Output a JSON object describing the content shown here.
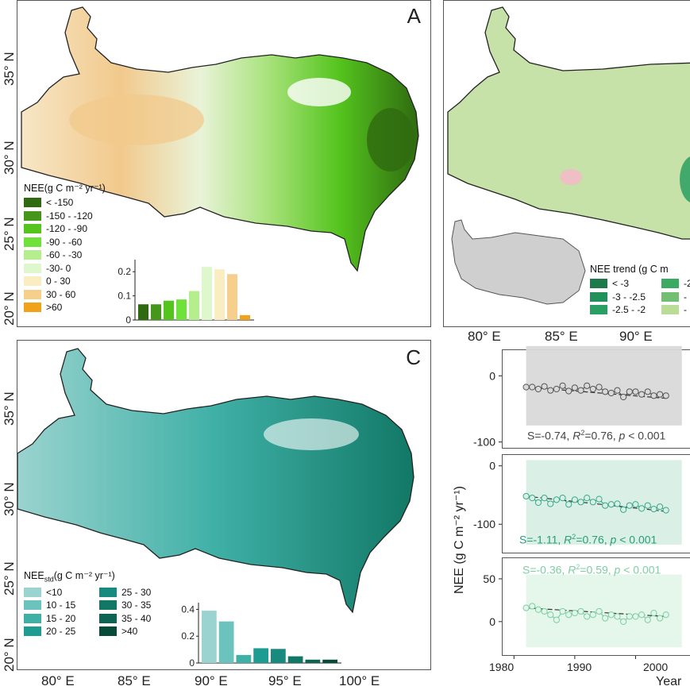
{
  "panels": {
    "a": {
      "letter": "A",
      "legend_title": "NEE(g C m⁻² yr⁻¹)",
      "legend_items": [
        {
          "label": "< -150",
          "color": "#2f6a10"
        },
        {
          "label": "-150 - -120",
          "color": "#46961b"
        },
        {
          "label": "-120 - -90",
          "color": "#55c41e"
        },
        {
          "label": "-90 - -60",
          "color": "#6fe23a"
        },
        {
          "label": "-60 - -30",
          "color": "#b5ee8c"
        },
        {
          "label": "-30- 0",
          "color": "#def7cc"
        },
        {
          "label": "0 - 30",
          "color": "#fbedc2"
        },
        {
          "label": "30 - 60",
          "color": "#f6cf8c"
        },
        {
          "label": ">60",
          "color": "#f0a31a"
        }
      ]
    },
    "b": {
      "legend_title": "NEE trend (g C m",
      "legend_items": [
        {
          "label": "< -3",
          "color": "#1e7a4a"
        },
        {
          "label": "-3 - -2.5",
          "color": "#22905a"
        },
        {
          "label": "-2.5 - -2",
          "color": "#2a9f63"
        },
        {
          "label": "-2",
          "color": "#3daa62"
        },
        {
          "label": "-",
          "color": "#72bf72"
        },
        {
          "label": "-",
          "color": "#b9dc97"
        }
      ]
    },
    "c": {
      "letter": "C",
      "legend_title_main": "NEE",
      "legend_title_sub": "std",
      "legend_title_rest": "(g C m⁻² yr⁻¹)",
      "legend_items": [
        {
          "label": "<10",
          "color": "#9ad3cf"
        },
        {
          "label": "10 - 15",
          "color": "#6cc2bd"
        },
        {
          "label": "15 - 20",
          "color": "#3fb0a6"
        },
        {
          "label": "20 - 25",
          "color": "#1e9c92"
        },
        {
          "label": "25 - 30",
          "color": "#188a7e"
        },
        {
          "label": "30 - 35",
          "color": "#127866"
        },
        {
          "label": "35 - 40",
          "color": "#0c6452"
        },
        {
          "label": ">40",
          "color": "#064a3a"
        }
      ]
    }
  },
  "lat_labels": [
    "35° N",
    "30° N",
    "25° N",
    "20° N"
  ],
  "lon_labels": [
    "80° E",
    "85° E",
    "90° E",
    "95° E",
    "100° E"
  ],
  "lon_labels_b": [
    "80° E",
    "85° E",
    "90° E"
  ],
  "ts": {
    "ylabel": "NEE (g C m⁻² yr⁻¹)",
    "xlabel": "Year",
    "x_ticks": [
      "1980",
      "1990",
      "2000"
    ],
    "stats": [
      {
        "S": "S=-0.74, ",
        "R": "R",
        "R_rest": "=0.76, ",
        "p": "p",
        "p_rest": " < 0.001"
      },
      {
        "S": "S=-1.11, ",
        "R": "R",
        "R_rest": "=0.76, ",
        "p": "p",
        "p_rest": " < 0.001"
      },
      {
        "S": "S=-0.36, ",
        "R": "R",
        "R_rest": "=0.59, ",
        "p": "p",
        "p_rest": " < 0.001"
      }
    ]
  },
  "chart_data": [
    {
      "type": "bar",
      "panel": "A inset histogram",
      "categories": [
        "< -150",
        "-150 - -120",
        "-120 - -90",
        "-90 - -60",
        "-60 - -30",
        "-30- 0",
        "0 - 30",
        "30 - 60",
        ">60"
      ],
      "values": [
        0.065,
        0.065,
        0.08,
        0.085,
        0.12,
        0.22,
        0.21,
        0.19,
        0.02
      ],
      "colors": [
        "#2f6a10",
        "#46961b",
        "#55c41e",
        "#6fe23a",
        "#b5ee8c",
        "#def7cc",
        "#fbedc2",
        "#f6cf8c",
        "#f0a31a"
      ],
      "y_ticks": [
        "0",
        "0.1",
        "0.2"
      ],
      "ylim": [
        0,
        0.25
      ]
    },
    {
      "type": "bar",
      "panel": "C inset histogram",
      "categories": [
        "<10",
        "10 - 15",
        "15 - 20",
        "20 - 25",
        "25 - 30",
        "30 - 35",
        "35 - 40",
        ">40"
      ],
      "values": [
        0.39,
        0.31,
        0.06,
        0.11,
        0.105,
        0.05,
        0.025,
        0.025
      ],
      "colors": [
        "#9ad3cf",
        "#6cc2bd",
        "#3fb0a6",
        "#1e9c92",
        "#188a7e",
        "#127866",
        "#0c6452",
        "#064a3a"
      ],
      "y_ticks": [
        "0",
        "0.2",
        "0.4"
      ],
      "ylim": [
        0,
        0.45
      ]
    },
    {
      "type": "line",
      "panel": "D time series 1",
      "x": [
        1982,
        1983,
        1984,
        1985,
        1986,
        1987,
        1988,
        1989,
        1990,
        1991,
        1992,
        1993,
        1994,
        1995,
        1996,
        1997,
        1998,
        1999,
        2000,
        2001,
        2002,
        2003,
        2004,
        2005
      ],
      "values": [
        -17,
        -17,
        -20,
        -16,
        -22,
        -20,
        -15,
        -23,
        -18,
        -22,
        -15,
        -20,
        -17,
        -24,
        -26,
        -22,
        -32,
        -24,
        -24,
        -28,
        -24,
        -30,
        -28,
        -30
      ],
      "fit": [
        -17,
        -34
      ],
      "band": [
        -75,
        45
      ],
      "yticks": [
        0,
        -100
      ],
      "ylim": [
        -110,
        40
      ],
      "color": "#555555",
      "band_color": "#d9d9d9"
    },
    {
      "type": "line",
      "panel": "D time series 2",
      "x": [
        1982,
        1983,
        1984,
        1985,
        1986,
        1987,
        1988,
        1989,
        1990,
        1991,
        1992,
        1993,
        1994,
        1995,
        1996,
        1997,
        1998,
        1999,
        2000,
        2001,
        2002,
        2003,
        2004,
        2005
      ],
      "values": [
        -52,
        -55,
        -63,
        -55,
        -65,
        -58,
        -55,
        -66,
        -58,
        -62,
        -55,
        -62,
        -57,
        -68,
        -66,
        -65,
        -75,
        -68,
        -66,
        -73,
        -68,
        -74,
        -70,
        -76
      ],
      "fit": [
        -52,
        -78
      ],
      "band": [
        -135,
        10
      ],
      "yticks": [
        0,
        -100
      ],
      "ylim": [
        -150,
        20
      ],
      "color": "#3aa98a",
      "band_color": "#d8efe6"
    },
    {
      "type": "line",
      "panel": "D time series 3",
      "x": [
        1982,
        1983,
        1984,
        1985,
        1986,
        1987,
        1988,
        1989,
        1990,
        1991,
        1992,
        1993,
        1994,
        1995,
        1996,
        1997,
        1998,
        1999,
        2000,
        2001,
        2002,
        2003,
        2004,
        2005
      ],
      "values": [
        16,
        18,
        14,
        12,
        8,
        2,
        12,
        8,
        10,
        12,
        6,
        8,
        12,
        4,
        8,
        6,
        0,
        6,
        6,
        8,
        2,
        10,
        4,
        8
      ],
      "fit": [
        16,
        6
      ],
      "band": [
        -30,
        55
      ],
      "yticks": [
        50,
        0
      ],
      "ylim": [
        -40,
        75
      ],
      "color": "#7ccfa3",
      "band_color": "#e4f5e9"
    }
  ]
}
